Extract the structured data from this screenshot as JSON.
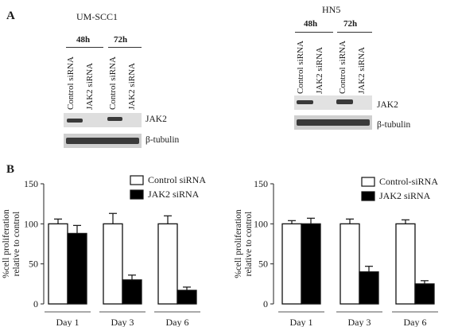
{
  "panel_a": {
    "label": "A",
    "left_blot": {
      "cell_line": "UM-SCC1",
      "timepoints": [
        "48h",
        "72h"
      ],
      "lane_labels": [
        "Control siRNA",
        "JAK2 siRNA",
        "Control siRNA",
        "JAK2 siRNA"
      ],
      "proteins": [
        "JAK2",
        "β-tubulin"
      ]
    },
    "right_blot": {
      "cell_line": "HN5",
      "timepoints": [
        "48h",
        "72h"
      ],
      "lane_labels": [
        "Control siRNA",
        "JAK2 siRNA",
        "Control siRNA",
        "JAK2 siRNA"
      ],
      "proteins": [
        "JAK2",
        "β-tubulin"
      ]
    }
  },
  "panel_b": {
    "label": "B"
  },
  "chart_data": [
    {
      "type": "bar",
      "categories": [
        "Day 1",
        "Day 3",
        "Day 6"
      ],
      "ylabel": "%cell proliferation relative to control",
      "ylim": [
        0,
        150
      ],
      "yticks": [
        0,
        50,
        100,
        150
      ],
      "legend_position": "top-right",
      "series": [
        {
          "name": "Control siRNA",
          "values": [
            100,
            100,
            100
          ],
          "errors": [
            6,
            13,
            10
          ],
          "fill": "#ffffff"
        },
        {
          "name": "JAK2 siRNA",
          "values": [
            88,
            30,
            17
          ],
          "errors": [
            10,
            6,
            4
          ],
          "fill": "#000000"
        }
      ]
    },
    {
      "type": "bar",
      "categories": [
        "Day 1",
        "Day 3",
        "Day 6"
      ],
      "ylabel": "%cell proliferation relative to control",
      "ylim": [
        0,
        150
      ],
      "yticks": [
        0,
        50,
        100,
        150
      ],
      "legend_position": "top-right",
      "series": [
        {
          "name": "Control-siRNA",
          "values": [
            100,
            100,
            100
          ],
          "errors": [
            4,
            6,
            5
          ],
          "fill": "#ffffff"
        },
        {
          "name": "JAK2 siRNA",
          "values": [
            100,
            40,
            25
          ],
          "errors": [
            7,
            7,
            4
          ],
          "fill": "#000000"
        }
      ]
    }
  ]
}
